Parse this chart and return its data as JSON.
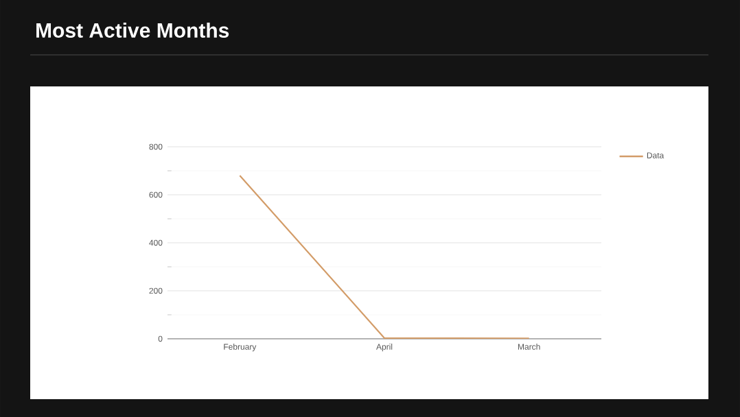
{
  "chart_data": {
    "type": "line",
    "title": "Most Active Months",
    "categories": [
      "February",
      "April",
      "March"
    ],
    "series": [
      {
        "name": "Data",
        "color": "#d39c68",
        "values": [
          680,
          3,
          2
        ]
      }
    ],
    "ylim": [
      0,
      800
    ],
    "yticks": [
      0,
      200,
      400,
      600,
      800
    ],
    "grid": "y",
    "legend": "top right",
    "marker": "none",
    "line_style": "solid"
  }
}
